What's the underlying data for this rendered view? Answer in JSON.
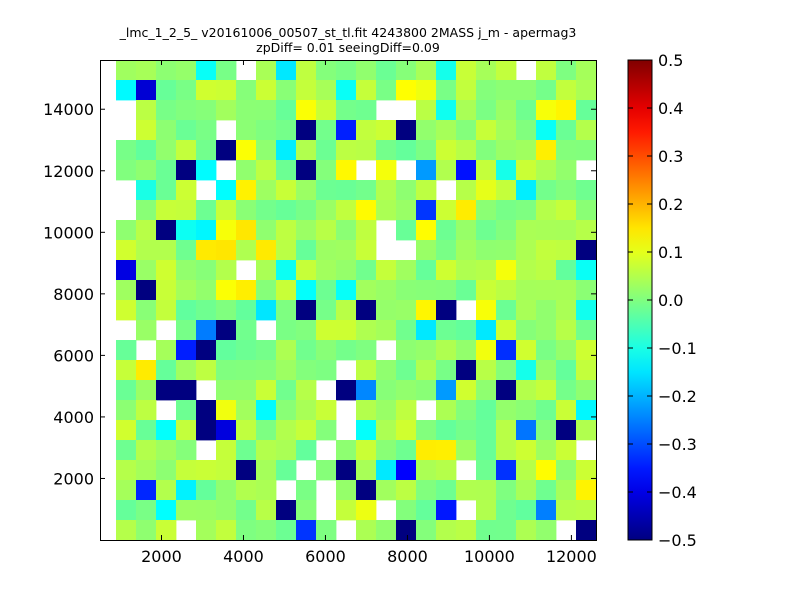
{
  "chart_data": {
    "type": "heatmap",
    "title_line1": "_lmc_1_2_5_ v20161006_00507_st_tl.fit 4243800 2MASS j_m - apermag3",
    "title_line2": "zpDiff= 0.01 seeingDiff=0.09",
    "xlabel": "",
    "ylabel": "",
    "xlim": [
      500,
      12600
    ],
    "ylim": [
      0,
      15600
    ],
    "x_ticks": [
      2000,
      4000,
      6000,
      8000,
      10000,
      12000
    ],
    "y_ticks": [
      2000,
      4000,
      6000,
      8000,
      10000,
      12000,
      14000
    ],
    "grid": false,
    "colormap": "jet",
    "colorbar": {
      "vmin": -0.5,
      "vmax": 0.5,
      "ticks": [
        -0.5,
        -0.4,
        -0.3,
        -0.2,
        -0.1,
        0.0,
        0.1,
        0.2,
        0.3,
        0.4,
        0.5
      ],
      "tick_labels": [
        "−0.5",
        "−0.4",
        "−0.3",
        "−0.2",
        "−0.1",
        "0.0",
        "0.1",
        "0.2",
        "0.3",
        "0.4",
        "0.5"
      ]
    },
    "grid_bins": {
      "columns": 24,
      "rows": 24
    }
  }
}
